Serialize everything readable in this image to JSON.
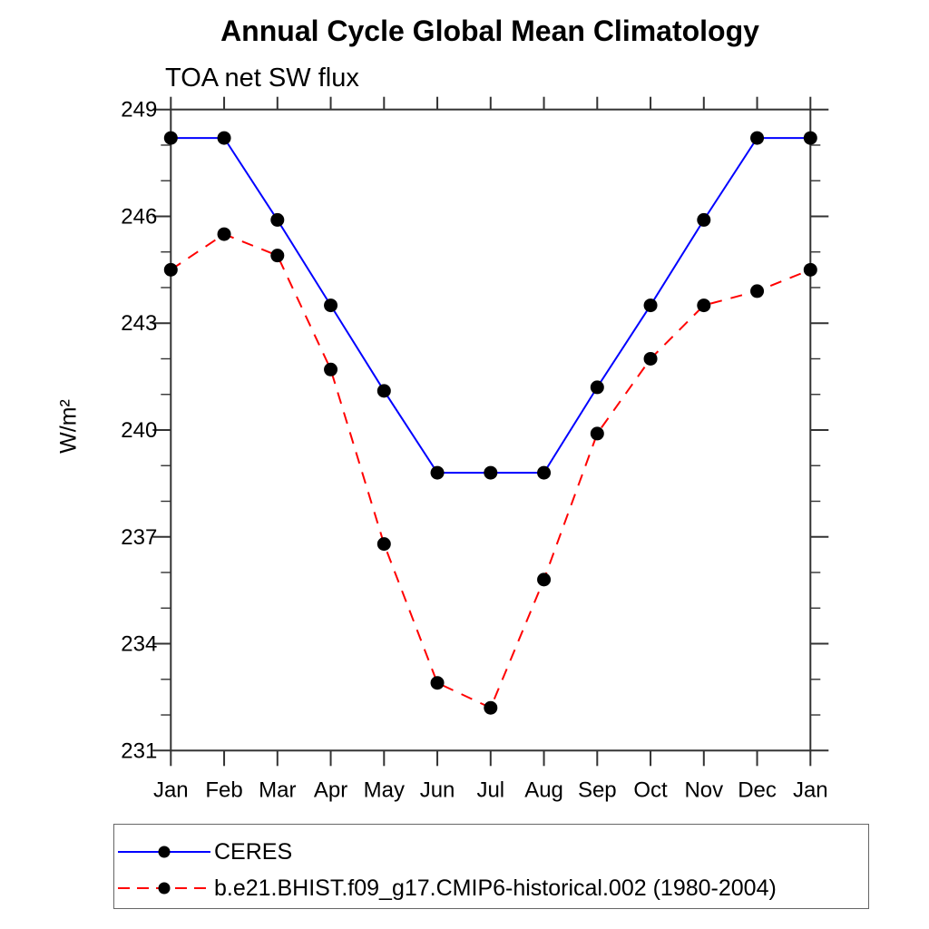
{
  "chart_data": {
    "type": "line",
    "title": "Annual Cycle Global Mean Climatology",
    "subtitle": "TOA net SW flux",
    "xlabel": "",
    "ylabel": "W/m²",
    "categories": [
      "Jan",
      "Feb",
      "Mar",
      "Apr",
      "May",
      "Jun",
      "Jul",
      "Aug",
      "Sep",
      "Oct",
      "Nov",
      "Dec",
      "Jan"
    ],
    "ylim": [
      231,
      249
    ],
    "y_major_ticks": [
      249,
      246,
      243,
      240,
      237,
      234,
      231
    ],
    "y_minor_step": 1,
    "grid": false,
    "legend_position": "bottom-left-boxed",
    "axis_color": "#333333",
    "marker_color": "#000000",
    "series": [
      {
        "name": "CERES",
        "color": "#0000ff",
        "line_style": "solid",
        "marker": "filled-circle",
        "values": [
          248.2,
          248.2,
          245.9,
          243.5,
          241.1,
          238.8,
          238.8,
          238.8,
          241.2,
          243.5,
          245.9,
          248.2,
          248.2
        ]
      },
      {
        "name": "b.e21.BHIST.f09_g17.CMIP6-historical.002 (1980-2004)",
        "color": "#ff0000",
        "line_style": "dashed",
        "marker": "filled-circle",
        "values": [
          244.5,
          245.5,
          244.9,
          241.7,
          236.8,
          232.9,
          232.2,
          235.8,
          239.9,
          242.0,
          243.5,
          243.9,
          244.5
        ]
      }
    ]
  }
}
